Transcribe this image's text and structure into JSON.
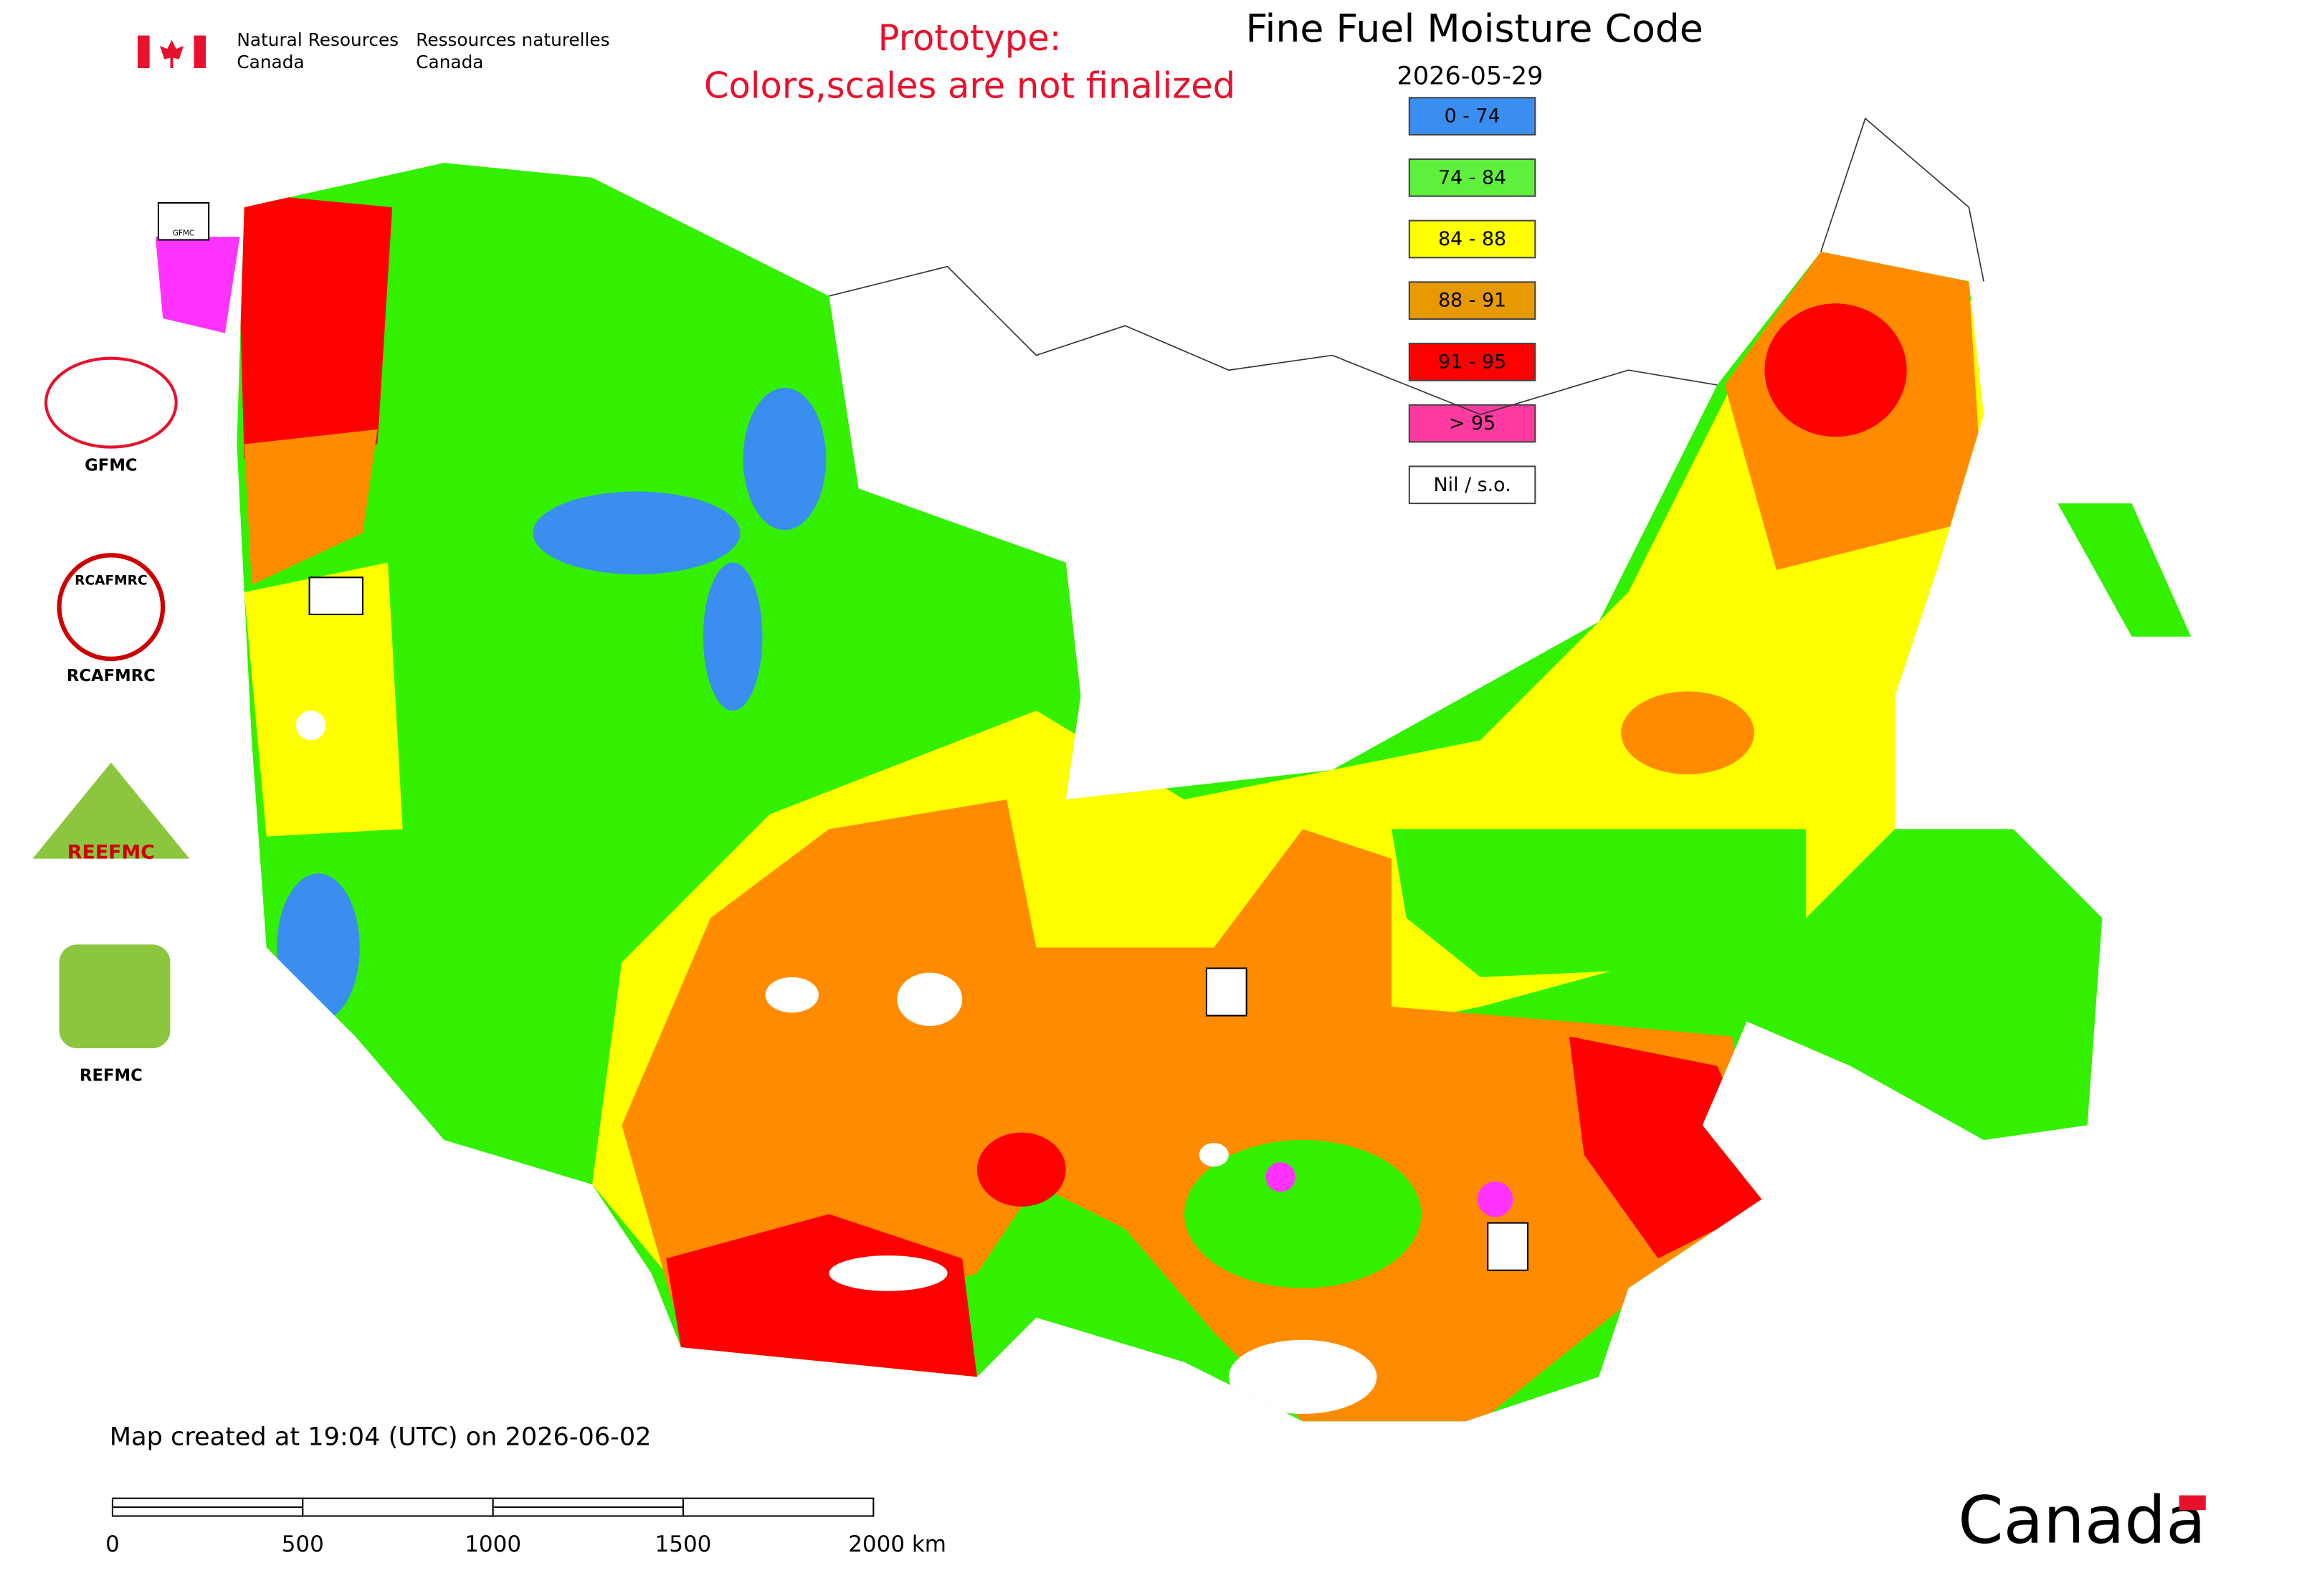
{
  "header": {
    "agency_en": [
      "Natural Resources",
      "Canada"
    ],
    "agency_fr": [
      "Ressources naturelles",
      "Canada"
    ],
    "notice": [
      "Prototype:",
      "Colors,scales are not finalized"
    ],
    "title": "Fine Fuel Moisture Code",
    "date": "2026-05-29"
  },
  "legend": [
    {
      "label": "0 - 74",
      "color": "#3a8ef0"
    },
    {
      "label": "74 - 84",
      "color": "#5ef03c"
    },
    {
      "label": "84 - 88",
      "color": "#ffff00"
    },
    {
      "label": "88 - 91",
      "color": "#e69a00"
    },
    {
      "label": "91 - 95",
      "color": "#ff0000"
    },
    {
      "label": "> 95",
      "color": "#ff3aa0"
    },
    {
      "label": "Nil / s.o.",
      "color": "#ffffff"
    }
  ],
  "map_colors": {
    "green": "#33f000",
    "orange": "#ff8c00",
    "magenta": "#ff33ff"
  },
  "logos": {
    "captions": [
      "GFMC",
      "RCAFMRC",
      "REFMC"
    ],
    "emblem_texts": [
      "GFMC",
      "RCAFMRC",
      "REEFMC"
    ]
  },
  "footer": {
    "created": "Map created at 19:04 (UTC) on 2026-06-02",
    "scale_labels": [
      "0",
      "500",
      "1000",
      "1500",
      "2000 km"
    ],
    "wordmark": "Canada"
  }
}
